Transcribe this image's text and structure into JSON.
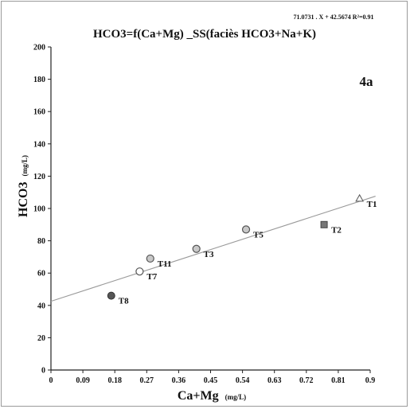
{
  "chart_data": {
    "type": "scatter",
    "title": "HCO3=f(Ca+Mg) _SS(faciès HCO3+Na+K)",
    "equation": "71.0731 . X  + 42.5674   R²=0.91",
    "panel_label": "4a",
    "xlabel": "Ca+Mg",
    "xlabel_unit": "(mg/L)",
    "ylabel": "HCO3",
    "ylabel_unit": "(mg/L)",
    "xlim": [
      0,
      0.9
    ],
    "ylim": [
      0,
      200
    ],
    "x_ticks": [
      "0",
      "0.09",
      "0.18",
      "0.27",
      "0.36",
      "0.45",
      "0.54",
      "0.63",
      "0.72",
      "0.81",
      "0.9"
    ],
    "y_ticks": [
      "0",
      "20",
      "40",
      "60",
      "80",
      "100",
      "120",
      "140",
      "160",
      "180",
      "200"
    ],
    "grid": false,
    "points": [
      {
        "label": "T1",
        "x": 0.87,
        "y": 106,
        "marker": "triangle"
      },
      {
        "label": "T2",
        "x": 0.77,
        "y": 90,
        "marker": "square"
      },
      {
        "label": "T3",
        "x": 0.41,
        "y": 75,
        "marker": "circle-gray"
      },
      {
        "label": "T5",
        "x": 0.55,
        "y": 87,
        "marker": "circle-gray"
      },
      {
        "label": "T7",
        "x": 0.25,
        "y": 61,
        "marker": "circle-open"
      },
      {
        "label": "T8",
        "x": 0.17,
        "y": 46,
        "marker": "circle-dark"
      },
      {
        "label": "T11",
        "x": 0.28,
        "y": 69,
        "marker": "circle-gray"
      }
    ],
    "fit": {
      "slope": 71.0731,
      "intercept": 42.5674
    }
  }
}
